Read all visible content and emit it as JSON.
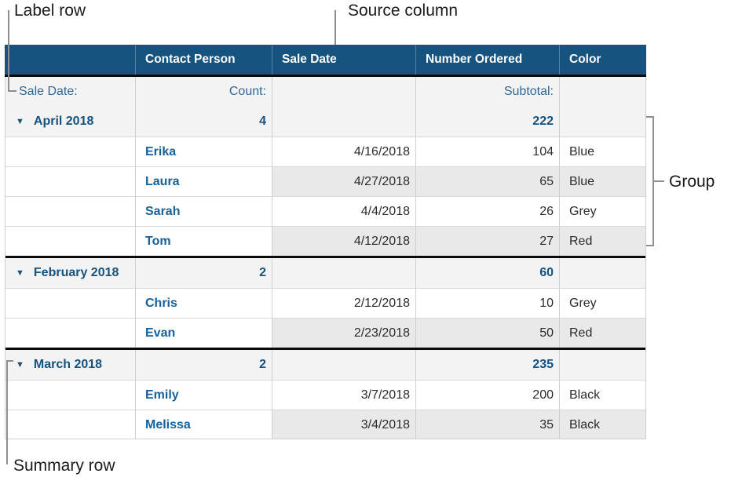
{
  "annotations": {
    "label_row": "Label row",
    "source_column": "Source column",
    "group": "Group",
    "summary_row": "Summary row"
  },
  "table": {
    "header": {
      "columns": [
        "",
        "Contact Person",
        "Sale Date",
        "Number Ordered",
        "Color"
      ]
    },
    "label_row": {
      "category": "Sale Date:",
      "count": "Count:",
      "subtotal": "Subtotal:"
    },
    "disclosure_icon": "▼",
    "groups": [
      {
        "name": "April 2018",
        "count": "4",
        "subtotal": "222",
        "rows": [
          {
            "contact": "Erika",
            "date": "4/16/2018",
            "number": "104",
            "color": "Blue"
          },
          {
            "contact": "Laura",
            "date": "4/27/2018",
            "number": "65",
            "color": "Blue"
          },
          {
            "contact": "Sarah",
            "date": "4/4/2018",
            "number": "26",
            "color": "Grey"
          },
          {
            "contact": "Tom",
            "date": "4/12/2018",
            "number": "27",
            "color": "Red"
          }
        ]
      },
      {
        "name": "February 2018",
        "count": "2",
        "subtotal": "60",
        "rows": [
          {
            "contact": "Chris",
            "date": "2/12/2018",
            "number": "10",
            "color": "Grey"
          },
          {
            "contact": "Evan",
            "date": "2/23/2018",
            "number": "50",
            "color": "Red"
          }
        ]
      },
      {
        "name": "March 2018",
        "count": "2",
        "subtotal": "235",
        "rows": [
          {
            "contact": "Emily",
            "date": "3/7/2018",
            "number": "200",
            "color": "Black"
          },
          {
            "contact": "Melissa",
            "date": "3/4/2018",
            "number": "35",
            "color": "Black"
          }
        ]
      }
    ]
  },
  "colors": {
    "header_bg": "#17537f",
    "accent_blue": "#16527e",
    "name_blue": "#16619c",
    "band_gray": "#e9e9ea",
    "summary_row_bg": "#f3f3f4",
    "callout_gray": "#8e8e8e"
  }
}
